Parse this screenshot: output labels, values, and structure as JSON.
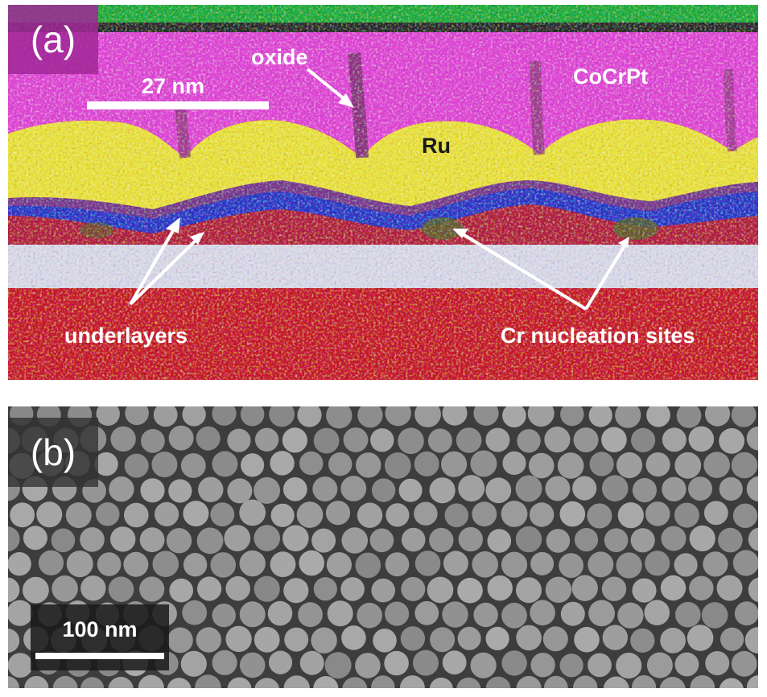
{
  "panel_a": {
    "label": "(a)",
    "scale_bar": "27 nm",
    "labels": {
      "oxide": "oxide",
      "cocrpt": "CoCrPt",
      "ru": "Ru",
      "underlayers": "underlayers",
      "cr_sites": "Cr nucleation sites"
    },
    "colors": {
      "top_layer": "#1faa3a",
      "cocrpt": "#e04ad6",
      "ru": "#e8e23a",
      "blue_band": "#2a3ad0",
      "white_band": "#d8d8e6",
      "red_base": "#c81a2a"
    }
  },
  "panel_b": {
    "label": "(b)",
    "scale_bar": "100 nm"
  }
}
